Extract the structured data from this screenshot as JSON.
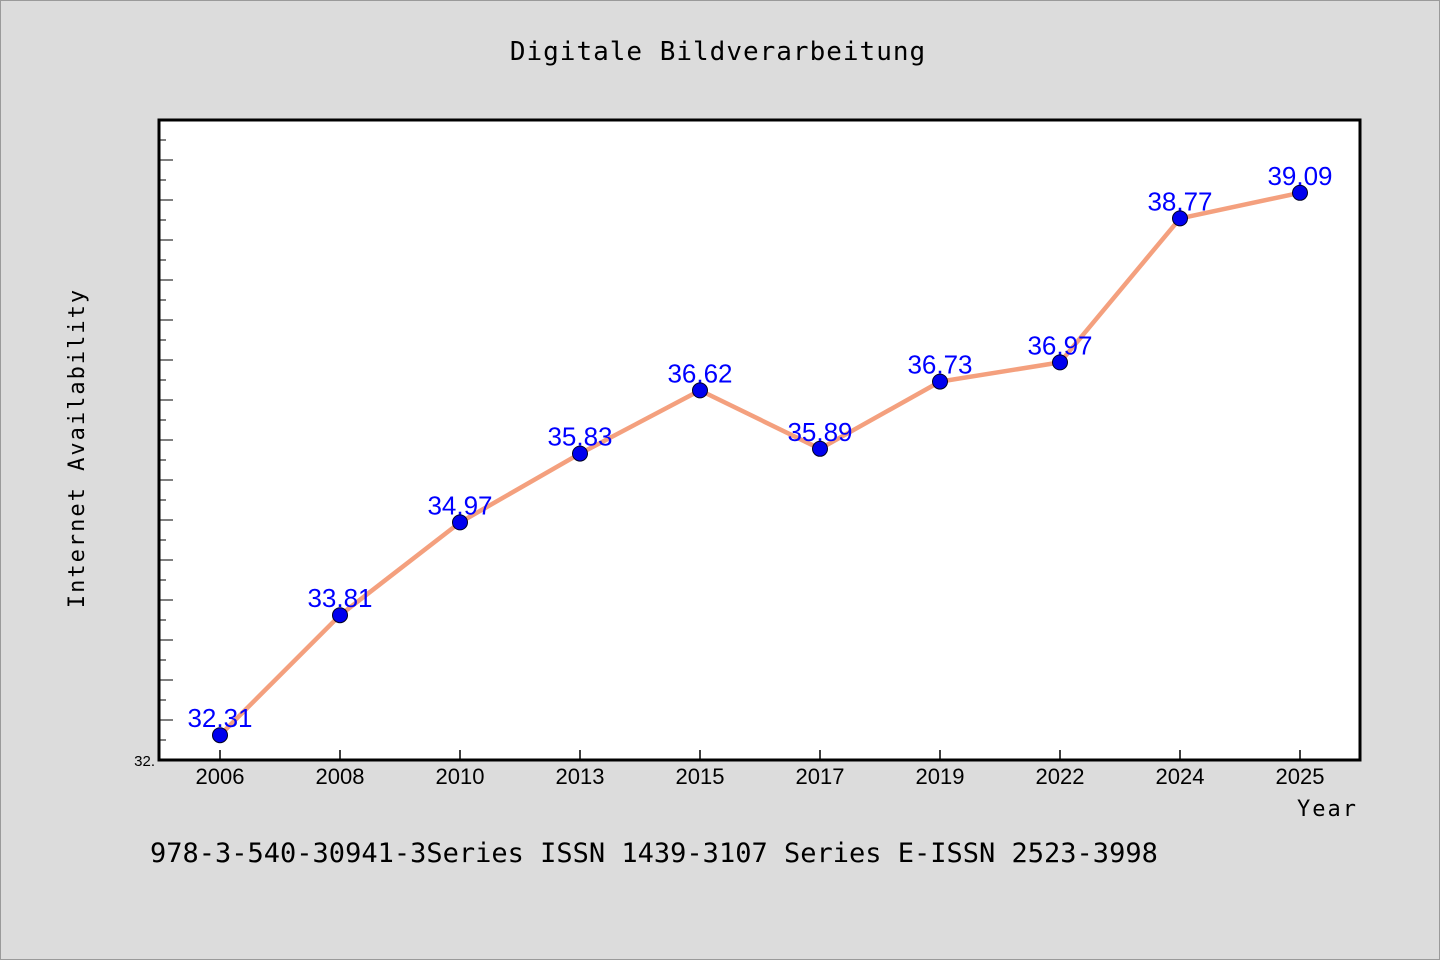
{
  "chart_data": {
    "type": "line",
    "title": "Digitale Bildverarbeitung",
    "xlabel": "Year",
    "ylabel": "Internet Availability",
    "categories": [
      "2006",
      "2008",
      "2010",
      "2013",
      "2015",
      "2017",
      "2019",
      "2022",
      "2024",
      "2025"
    ],
    "series": [
      {
        "values": [
          32.31,
          33.81,
          34.97,
          35.83,
          36.62,
          35.89,
          36.73,
          36.97,
          38.77,
          39.09
        ],
        "labels": [
          "32.31",
          "33.81",
          "34.97",
          "35.83",
          "36.62",
          "35.89",
          "36.73",
          "36.97",
          "38.77",
          "39.09"
        ],
        "line_color": "#f4a07e",
        "marker_color": "#0000ee"
      }
    ],
    "ylim": [
      32.0,
      40.0
    ],
    "ymin_label": "32.",
    "grid": false,
    "legend": "none",
    "footnote": "978-3-540-30941-3Series ISSN 1439-3107 Series E-ISSN 2523-3998"
  }
}
